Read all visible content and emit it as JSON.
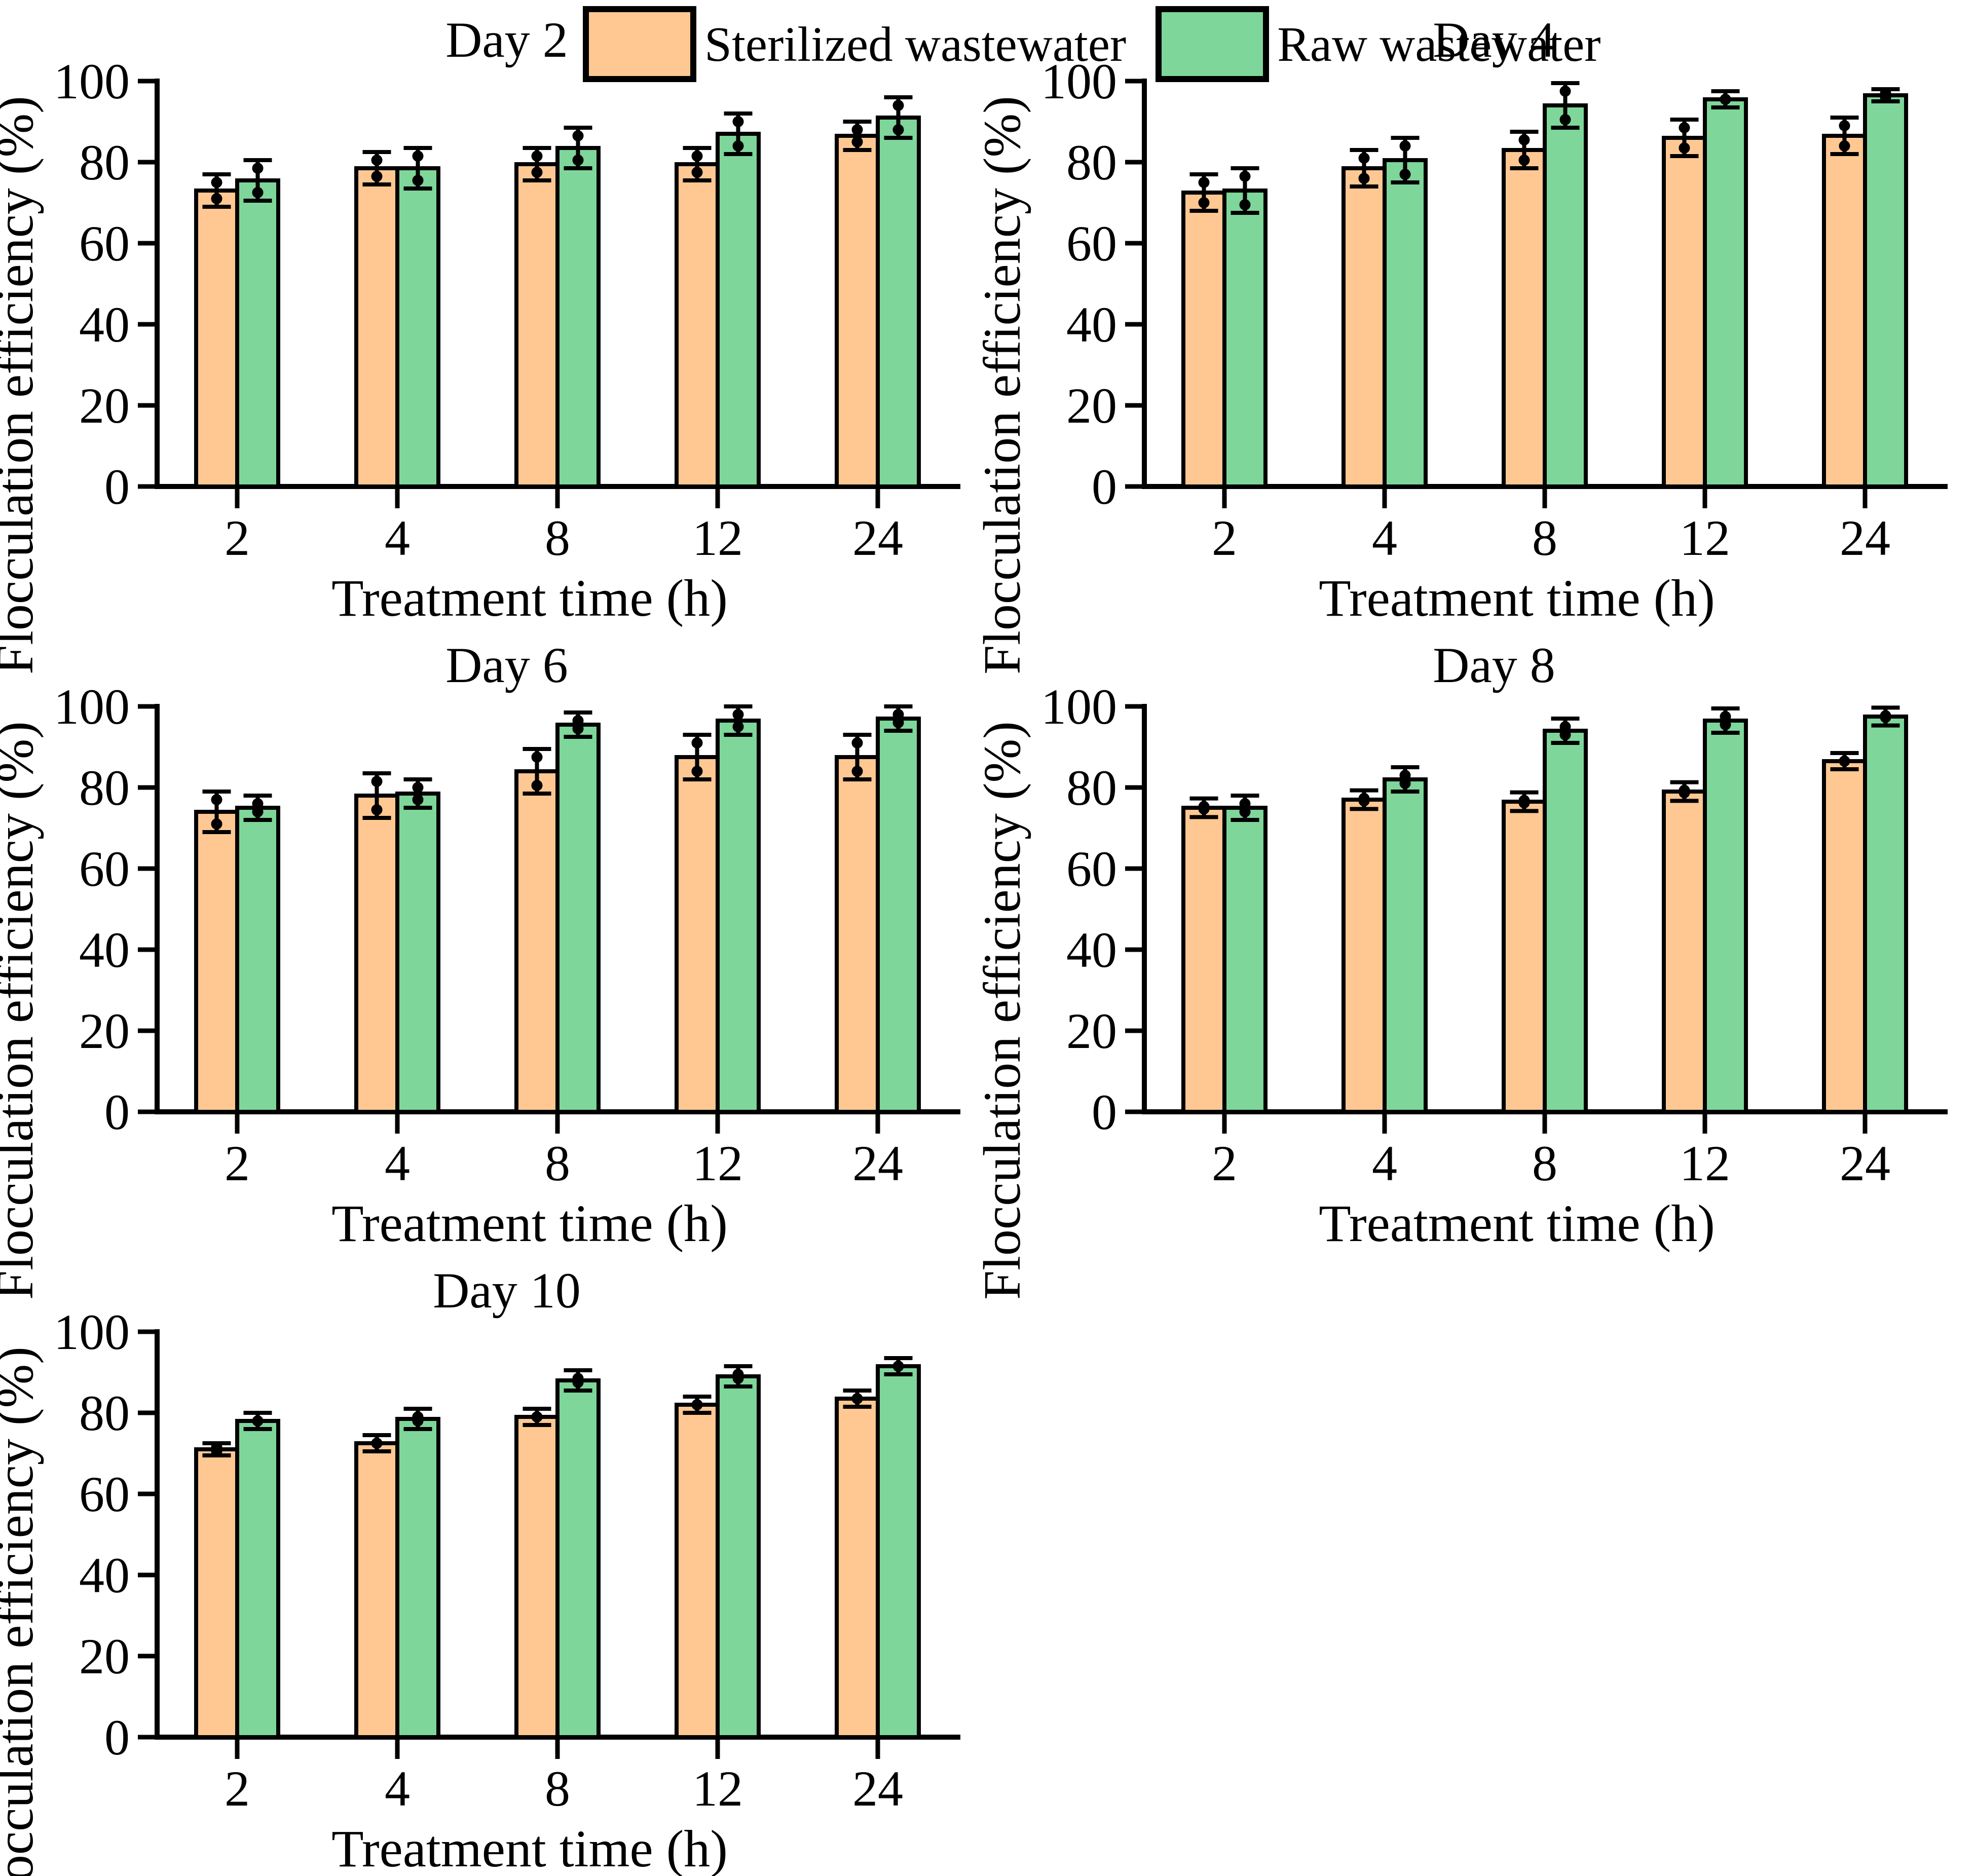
{
  "legend": {
    "items": [
      {
        "label": "Sterilized wastewater",
        "color": "#FFC893"
      },
      {
        "label": "Raw wastewater",
        "color": "#7ED69A"
      }
    ]
  },
  "colors": {
    "sterilized_fill": "#FFC893",
    "raw_fill": "#7ED69A",
    "axis": "#000000",
    "background": "#FFFFFF"
  },
  "chart_data": [
    {
      "type": "bar",
      "title": "Day 2",
      "categories": [
        "2",
        "4",
        "8",
        "12",
        "24"
      ],
      "series": [
        {
          "name": "Sterilized wastewater",
          "color": "#FFC893",
          "values": [
            73,
            78.5,
            79.5,
            79.5,
            86.5
          ],
          "errors": [
            4,
            4,
            4,
            4,
            3.5
          ]
        },
        {
          "name": "Raw wastewater",
          "color": "#7ED69A",
          "values": [
            75.5,
            78.5,
            83.5,
            87,
            91
          ],
          "errors": [
            5,
            5,
            5,
            5,
            5
          ]
        }
      ],
      "xlabel": "Treatment time (h)",
      "ylabel": "Flocculation efficiency (%)",
      "ylim": [
        0,
        100
      ],
      "yticks": [
        0,
        20,
        40,
        60,
        80,
        100
      ],
      "grid": false,
      "legend_position": "top-center"
    },
    {
      "type": "bar",
      "title": "Day 4",
      "categories": [
        "2",
        "4",
        "8",
        "12",
        "24"
      ],
      "series": [
        {
          "name": "Sterilized wastewater",
          "color": "#FFC893",
          "values": [
            72.5,
            78.5,
            83,
            86,
            86.5
          ],
          "errors": [
            4.5,
            4.5,
            4.5,
            4.5,
            4.5
          ]
        },
        {
          "name": "Raw wastewater",
          "color": "#7ED69A",
          "values": [
            73,
            80.5,
            94,
            95.5,
            96.5
          ],
          "errors": [
            5.5,
            5.5,
            5.5,
            2,
            1.5
          ]
        }
      ],
      "xlabel": "Treatment time (h)",
      "ylabel": "Flocculation efficiency (%)",
      "ylim": [
        0,
        100
      ],
      "yticks": [
        0,
        20,
        40,
        60,
        80,
        100
      ],
      "grid": false,
      "legend_position": "top-center"
    },
    {
      "type": "bar",
      "title": "Day 6",
      "categories": [
        "2",
        "4",
        "8",
        "12",
        "24"
      ],
      "series": [
        {
          "name": "Sterilized wastewater",
          "color": "#FFC893",
          "values": [
            74,
            78,
            84,
            87.5,
            87.5
          ],
          "errors": [
            5,
            5.5,
            5.5,
            5.5,
            5.5
          ]
        },
        {
          "name": "Raw wastewater",
          "color": "#7ED69A",
          "values": [
            75,
            78.5,
            95.5,
            96.5,
            97
          ],
          "errors": [
            3,
            3.5,
            3,
            3.5,
            3
          ]
        }
      ],
      "xlabel": "Treatment time (h)",
      "ylabel": "Flocculation efficiency (%)",
      "ylim": [
        0,
        100
      ],
      "yticks": [
        0,
        20,
        40,
        60,
        80,
        100
      ],
      "grid": false,
      "legend_position": "top-center"
    },
    {
      "type": "bar",
      "title": "Day 8",
      "categories": [
        "2",
        "4",
        "8",
        "12",
        "24"
      ],
      "series": [
        {
          "name": "Sterilized wastewater",
          "color": "#FFC893",
          "values": [
            75,
            77,
            76.5,
            79,
            86.5
          ],
          "errors": [
            2.3,
            2.3,
            2.3,
            2.3,
            2
          ]
        },
        {
          "name": "Raw wastewater",
          "color": "#7ED69A",
          "values": [
            75,
            82,
            94,
            96.5,
            97.5
          ],
          "errors": [
            3,
            3,
            3,
            3,
            2.2
          ]
        }
      ],
      "xlabel": "Treatment time (h)",
      "ylabel": "Flocculation efficiency (%)",
      "ylim": [
        0,
        100
      ],
      "yticks": [
        0,
        20,
        40,
        60,
        80,
        100
      ],
      "grid": false,
      "legend_position": "top-center"
    },
    {
      "type": "bar",
      "title": "Day 10",
      "categories": [
        "2",
        "4",
        "8",
        "12",
        "24"
      ],
      "series": [
        {
          "name": "Sterilized wastewater",
          "color": "#FFC893",
          "values": [
            71,
            72.5,
            79,
            82,
            83.5
          ],
          "errors": [
            1.5,
            2,
            2,
            2,
            2
          ]
        },
        {
          "name": "Raw wastewater",
          "color": "#7ED69A",
          "values": [
            78,
            78.5,
            88,
            89,
            91.5
          ],
          "errors": [
            2,
            2.5,
            2.5,
            2.5,
            2
          ]
        }
      ],
      "xlabel": "Treatment time (h)",
      "ylabel": "Flocculation efficiency (%)",
      "ylim": [
        0,
        100
      ],
      "yticks": [
        0,
        20,
        40,
        60,
        80,
        100
      ],
      "grid": false,
      "legend_position": "top-center"
    }
  ]
}
